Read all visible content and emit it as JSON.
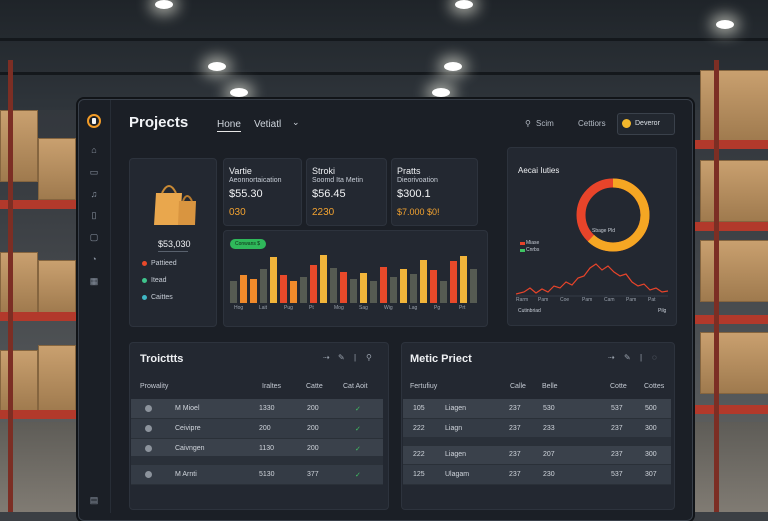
{
  "header": {
    "title": "Projects",
    "nav": [
      "Hone",
      "Vetiatl"
    ],
    "search_label": "Scim",
    "settings_label": "Cettiors",
    "user_name": "Deveror"
  },
  "cards": [
    {
      "label": "Vartie",
      "sub": "Aeonnortaication",
      "value": "$55.30",
      "extra": "030"
    },
    {
      "label": "Stroki",
      "sub": "Soomd Ita Metin",
      "value": "$56.45",
      "extra": "2230"
    },
    {
      "label": "Pratts",
      "sub": "Dieorivoation",
      "value": "$300.1",
      "extra": "$7.000 $0!"
    }
  ],
  "summary": {
    "value": "$53,030",
    "legend": [
      "Pattieed",
      "Itead",
      "Caittes"
    ],
    "badge": "Conwans $"
  },
  "bar_chart": {
    "x_ticks": [
      "Hog",
      "Lait",
      "Pug",
      "Pt",
      "Mog",
      "Sag",
      "Wig",
      "Lag",
      "Pg",
      "Prt"
    ],
    "series_colors": [
      "#565b52",
      "#f08a2b",
      "#e8492a",
      "#f2b53a",
      "#7c8a5e"
    ],
    "values": [
      {
        "c": 0,
        "v": 0.45
      },
      {
        "c": 1,
        "v": 0.58
      },
      {
        "c": 1,
        "v": 0.5
      },
      {
        "c": 0,
        "v": 0.7
      },
      {
        "c": 3,
        "v": 0.95
      },
      {
        "c": 2,
        "v": 0.58
      },
      {
        "c": 1,
        "v": 0.45
      },
      {
        "c": 0,
        "v": 0.55
      },
      {
        "c": 2,
        "v": 0.8
      },
      {
        "c": 3,
        "v": 1.0
      },
      {
        "c": 0,
        "v": 0.72
      },
      {
        "c": 2,
        "v": 0.65
      },
      {
        "c": 0,
        "v": 0.5
      },
      {
        "c": 3,
        "v": 0.62
      },
      {
        "c": 0,
        "v": 0.45
      },
      {
        "c": 2,
        "v": 0.75
      },
      {
        "c": 0,
        "v": 0.55
      },
      {
        "c": 3,
        "v": 0.7
      },
      {
        "c": 0,
        "v": 0.6
      },
      {
        "c": 3,
        "v": 0.9
      },
      {
        "c": 2,
        "v": 0.68
      },
      {
        "c": 0,
        "v": 0.45
      },
      {
        "c": 2,
        "v": 0.88
      },
      {
        "c": 3,
        "v": 0.98
      },
      {
        "c": 0,
        "v": 0.7
      }
    ]
  },
  "donut": {
    "title": "Aecai Iuties",
    "center_label": "Sbage Pld",
    "legend": [
      "Miase",
      "Cnrbs"
    ],
    "colors": {
      "outer": "#f5a623",
      "inner": "#e8442a"
    },
    "share": 0.62,
    "x_ticks": [
      "Rarm",
      "Pam",
      "Coe",
      "Pam",
      "Cam",
      "Pam",
      "Pat"
    ],
    "footer_left": "Cutinbriad",
    "footer_right": "Pilg"
  },
  "projects_table": {
    "title": "Troicttts",
    "headers": [
      "Prowality",
      "Iraltes",
      "Catte",
      "Cat Aoit"
    ],
    "rows": [
      {
        "name": "M Mioel",
        "a": "1330",
        "b": "200",
        "check": "✓"
      },
      {
        "name": "Ceivipre",
        "a": "200",
        "b": "200",
        "check": "✓"
      },
      {
        "name": "Caivngen",
        "a": "1130",
        "b": "200",
        "check": "✓"
      },
      {
        "name": "M Arnti",
        "a": "5130",
        "b": "377",
        "check": "✓"
      }
    ]
  },
  "metric_table": {
    "title": "Metic Priect",
    "headers": [
      "Fertufiuy",
      "Calle",
      "Belle",
      "Cotte",
      "Cottes"
    ],
    "rows": [
      {
        "a": "105",
        "name": "Liagen",
        "b": "237",
        "c": "530",
        "d": "537",
        "e": "500"
      },
      {
        "a": "222",
        "name": "Liagn",
        "b": "237",
        "c": "233",
        "d": "237",
        "e": "300"
      },
      {
        "a": "222",
        "name": "Liagen",
        "b": "237",
        "c": "207",
        "d": "237",
        "e": "300"
      },
      {
        "a": "125",
        "name": "Ulagam",
        "b": "237",
        "c": "230",
        "d": "537",
        "e": "307"
      }
    ]
  }
}
